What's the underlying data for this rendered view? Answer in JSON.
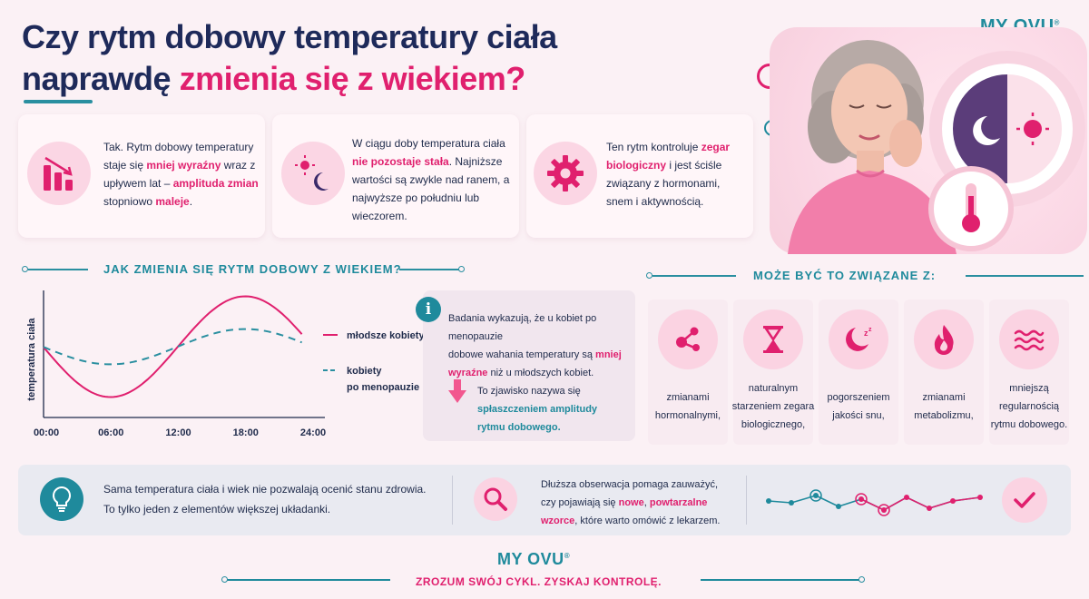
{
  "header": {
    "title_line1": "Czy rytm dobowy temperatury ciała",
    "title_line2_plain": "naprawdę ",
    "title_line2_accent": "zmienia się z wiekiem?",
    "logo": "MY OVU",
    "logo_mark": "®"
  },
  "cards": [
    {
      "icon": "declining-bars-icon",
      "parts": [
        {
          "t": "Tak. Rytm dobowy temperatury staje się ",
          "h": false
        },
        {
          "t": "mniej wyraźny",
          "h": true
        },
        {
          "t": " wraz z upływem lat – ",
          "h": false
        },
        {
          "t": "amplituda zmian",
          "h": true
        },
        {
          "t": " stopniowo ",
          "h": false
        },
        {
          "t": "maleje",
          "h": true
        },
        {
          "t": ".",
          "h": false
        }
      ]
    },
    {
      "icon": "sun-moon-icon",
      "parts": [
        {
          "t": "W ciągu doby temperatura ciała ",
          "h": false
        },
        {
          "t": "nie pozostaje stała",
          "h": true
        },
        {
          "t": ". Najniższe wartości są zwykle nad ranem, a najwyższe po południu lub wieczorem.",
          "h": false
        }
      ]
    },
    {
      "icon": "gear-icon",
      "parts": [
        {
          "t": "Ten rytm kontroluje ",
          "h": false
        },
        {
          "t": "zegar biologiczny",
          "h": true
        },
        {
          "t": " i jest ściśle związany z hormonami, snem i aktywnością.",
          "h": false
        }
      ]
    }
  ],
  "chart_section": {
    "heading": "JAK ZMIENIA SIĘ RYTM DOBOWY Z WIEKIEM?"
  },
  "chart_data": {
    "type": "line",
    "title": "",
    "ylabel": "temperatura ciała",
    "xlabel": "",
    "x": [
      "00:00",
      "06:00",
      "12:00",
      "18:00",
      "24:00"
    ],
    "x_hours": [
      0,
      6,
      12,
      18,
      24
    ],
    "legend_placement": "right",
    "series": [
      {
        "name": "młodsze kobiety",
        "style": "solid",
        "color": "#e0206e",
        "amplitude": 1.0,
        "x": [
          0,
          3,
          6,
          9,
          12,
          15,
          18,
          21,
          23
        ],
        "y": [
          0.15,
          -0.75,
          -0.95,
          -0.7,
          0.05,
          0.75,
          0.97,
          0.7,
          0.4
        ]
      },
      {
        "name": "kobiety po menopauzie",
        "style": "dashed",
        "color": "#2a8fa0",
        "amplitude": 0.35,
        "x": [
          0,
          3,
          6,
          9,
          12,
          15,
          18,
          21,
          23
        ],
        "y": [
          0.05,
          -0.25,
          -0.35,
          -0.28,
          0.0,
          0.27,
          0.35,
          0.25,
          0.1
        ]
      }
    ]
  },
  "research": {
    "line1": "Badania wykazują, że u kobiet po menopauzie",
    "line2_plain": "dobowe wahania temperatury są ",
    "line2_accent": "mniej",
    "line3_accent": "wyraźne",
    "line3_plain": " niż u młodszych kobiet.",
    "arrow_text": "To zjawisko nazywa się",
    "term_line1": "spłaszczeniem amplitudy",
    "term_line2": "rytmu dobowego."
  },
  "causes_section": {
    "heading": "MOŻE BYĆ TO ZWIĄZANE Z:",
    "items": [
      {
        "icon": "molecule-icon",
        "lines": [
          "zmianami",
          "hormonalnymi,"
        ]
      },
      {
        "icon": "hourglass-icon",
        "lines": [
          "naturalnym",
          "starzeniem zegara",
          "biologicznego,"
        ]
      },
      {
        "icon": "moon-sleep-icon",
        "lines": [
          "pogorszeniem",
          "jakości snu,"
        ]
      },
      {
        "icon": "flame-icon",
        "lines": [
          "zmianami",
          "metabolizmu,"
        ]
      },
      {
        "icon": "waves-icon",
        "lines": [
          "mniejszą",
          "regularnością",
          "rytmu dobowego."
        ]
      }
    ]
  },
  "bottom": {
    "left_line1": "Sama temperatura ciała i wiek nie pozwalają ocenić stanu zdrowia.",
    "left_line2": "To tylko jeden z elementów większej układanki.",
    "mid_line1": "Dłuższa obserwacja pomaga zauważyć,",
    "mid_line2_plain": "czy pojawiają się ",
    "mid_line2_accent1": "nowe",
    "mid_line2_sep": ", ",
    "mid_line2_accent2": "powtarzalne",
    "mid_line3_accent": "wzorce",
    "mid_line3_plain": ", które warto omówić z lekarzem."
  },
  "footer": {
    "logo": "MY OVU",
    "logo_mark": "®",
    "slogan": "ZROZUM SWÓJ CYKL. ZYSKAJ KONTROLĘ."
  },
  "colors": {
    "navy": "#1e2a5a",
    "pink": "#e0206e",
    "teal": "#1f8a9c",
    "light_pink": "#fbd6e4"
  }
}
